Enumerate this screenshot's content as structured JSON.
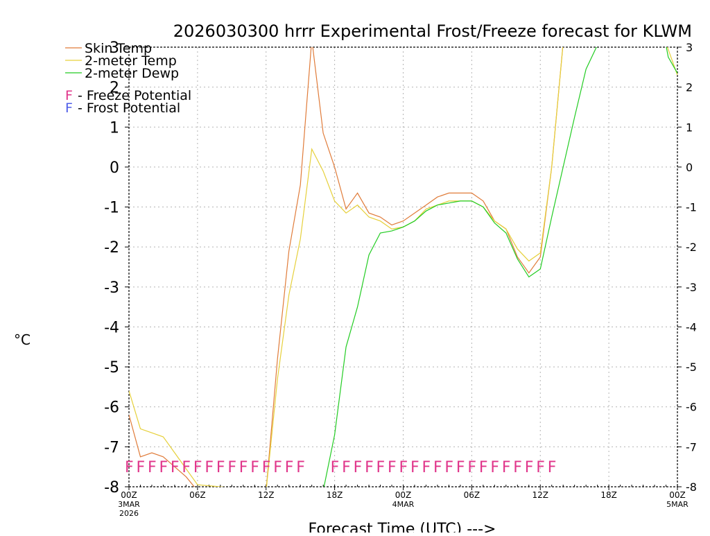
{
  "chart_data": {
    "type": "line",
    "title": "2026030300 hrrr Experimental Frost/Freeze forecast for KLWM",
    "xlabel": "Forecast Time (UTC) --->",
    "ylabel": "°C",
    "ylim": [
      -8,
      3
    ],
    "xlim": [
      0,
      48
    ],
    "grid": true,
    "y_ticks": [
      -8,
      -7,
      -6,
      -5,
      -4,
      -3,
      -2,
      -1,
      0,
      1,
      2,
      3
    ],
    "y_tick_labels": [
      "-8",
      "-7",
      "-6",
      "-5",
      "-4",
      "-3",
      "-2",
      "-1",
      "0",
      "1",
      "2",
      "3"
    ],
    "x_ticks": [
      {
        "hour": 0,
        "label": "00Z",
        "sub1": "3MAR",
        "sub2": "2026"
      },
      {
        "hour": 6,
        "label": "06Z",
        "sub1": "",
        "sub2": ""
      },
      {
        "hour": 12,
        "label": "12Z",
        "sub1": "",
        "sub2": ""
      },
      {
        "hour": 18,
        "label": "18Z",
        "sub1": "",
        "sub2": ""
      },
      {
        "hour": 24,
        "label": "00Z",
        "sub1": "4MAR",
        "sub2": ""
      },
      {
        "hour": 30,
        "label": "06Z",
        "sub1": "",
        "sub2": ""
      },
      {
        "hour": 36,
        "label": "12Z",
        "sub1": "",
        "sub2": ""
      },
      {
        "hour": 42,
        "label": "18Z",
        "sub1": "",
        "sub2": ""
      },
      {
        "hour": 48,
        "label": "00Z",
        "sub1": "5MAR",
        "sub2": ""
      }
    ],
    "series": [
      {
        "name": "Skin Temp",
        "color": "#e07b39",
        "points": [
          [
            0,
            -6.2
          ],
          [
            1,
            -7.25
          ],
          [
            2,
            -7.15
          ],
          [
            3,
            -7.25
          ],
          [
            4,
            -7.5
          ],
          [
            5,
            -7.75
          ],
          [
            6,
            -8.1
          ],
          [
            12,
            -8.1
          ],
          [
            13,
            -4.8
          ],
          [
            14,
            -2.1
          ],
          [
            15,
            -0.45
          ],
          [
            16,
            3.2
          ],
          [
            17,
            0.85
          ],
          [
            18,
            0.0
          ],
          [
            19,
            -1.05
          ],
          [
            20,
            -0.65
          ],
          [
            21,
            -1.15
          ],
          [
            22,
            -1.25
          ],
          [
            23,
            -1.45
          ],
          [
            24,
            -1.35
          ],
          [
            25,
            -1.15
          ],
          [
            26,
            -0.95
          ],
          [
            27,
            -0.75
          ],
          [
            28,
            -0.65
          ],
          [
            29,
            -0.65
          ],
          [
            30,
            -0.65
          ],
          [
            31,
            -0.85
          ],
          [
            32,
            -1.35
          ],
          [
            33,
            -1.55
          ],
          [
            34,
            -2.25
          ],
          [
            35,
            -2.65
          ],
          [
            36,
            -2.25
          ],
          [
            37,
            0.0
          ],
          [
            38,
            3.1
          ],
          [
            48,
            3.1
          ]
        ]
      },
      {
        "name": "2-meter Temp",
        "color": "#e6d03a",
        "points": [
          [
            0,
            -5.6
          ],
          [
            1,
            -6.55
          ],
          [
            2,
            -6.65
          ],
          [
            3,
            -6.75
          ],
          [
            4,
            -7.15
          ],
          [
            5,
            -7.55
          ],
          [
            6,
            -7.95
          ],
          [
            12,
            -8.1
          ],
          [
            13,
            -5.3
          ],
          [
            14,
            -3.2
          ],
          [
            15,
            -1.8
          ],
          [
            16,
            0.45
          ],
          [
            17,
            -0.1
          ],
          [
            18,
            -0.85
          ],
          [
            19,
            -1.15
          ],
          [
            20,
            -0.95
          ],
          [
            21,
            -1.25
          ],
          [
            22,
            -1.35
          ],
          [
            23,
            -1.55
          ],
          [
            24,
            -1.5
          ],
          [
            25,
            -1.35
          ],
          [
            26,
            -1.05
          ],
          [
            27,
            -0.95
          ],
          [
            28,
            -0.85
          ],
          [
            29,
            -0.85
          ],
          [
            30,
            -0.85
          ],
          [
            31,
            -1.0
          ],
          [
            32,
            -1.35
          ],
          [
            33,
            -1.55
          ],
          [
            34,
            -2.05
          ],
          [
            35,
            -2.35
          ],
          [
            36,
            -2.15
          ],
          [
            37,
            0.0
          ],
          [
            38,
            3.1
          ],
          [
            47,
            3.1
          ],
          [
            48,
            2.3
          ]
        ]
      },
      {
        "name": "2-meter Dewp",
        "color": "#22cc22",
        "points": [
          [
            17,
            -8.1
          ],
          [
            18,
            -6.7
          ],
          [
            19,
            -4.5
          ],
          [
            20,
            -3.5
          ],
          [
            21,
            -2.2
          ],
          [
            22,
            -1.65
          ],
          [
            23,
            -1.6
          ],
          [
            24,
            -1.5
          ],
          [
            25,
            -1.35
          ],
          [
            26,
            -1.1
          ],
          [
            27,
            -0.95
          ],
          [
            28,
            -0.9
          ],
          [
            29,
            -0.85
          ],
          [
            30,
            -0.85
          ],
          [
            31,
            -1.0
          ],
          [
            32,
            -1.4
          ],
          [
            33,
            -1.65
          ],
          [
            34,
            -2.3
          ],
          [
            35,
            -2.75
          ],
          [
            36,
            -2.55
          ],
          [
            37,
            -1.25
          ],
          [
            38,
            0.0
          ],
          [
            39,
            1.25
          ],
          [
            40,
            2.45
          ],
          [
            41,
            3.05
          ],
          [
            47,
            3.05
          ],
          [
            47.2,
            2.75
          ],
          [
            48,
            2.35
          ]
        ]
      }
    ],
    "legend": [
      {
        "label": "Skin Temp",
        "color": "#e07b39"
      },
      {
        "label": "2-meter Temp",
        "color": "#e6d03a"
      },
      {
        "label": "2-meter Dewp",
        "color": "#22cc22"
      }
    ],
    "potential_legend": [
      {
        "marker": "F",
        "marker_color": "#e0358a",
        "text": " - Freeze Potential"
      },
      {
        "marker": "F",
        "marker_color": "#4f5ee8",
        "text": " - Frost Potential"
      }
    ],
    "freeze_marks": {
      "marker": "F",
      "color": "#e0358a",
      "hours": [
        0,
        1,
        2,
        3,
        4,
        5,
        6,
        7,
        8,
        9,
        10,
        11,
        12,
        13,
        14,
        15,
        18,
        19,
        20,
        21,
        22,
        23,
        24,
        25,
        26,
        27,
        28,
        29,
        30,
        31,
        32,
        33,
        34,
        35,
        36,
        37
      ]
    }
  }
}
